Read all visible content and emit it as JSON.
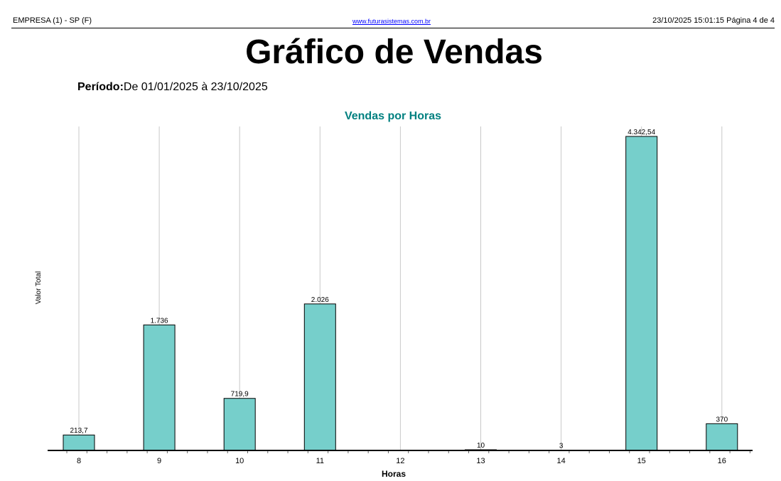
{
  "header": {
    "company": "EMPRESA (1) - SP (F)",
    "url": "www.futurasistemas.com.br",
    "datetime_page": "23/10/2025 15:01:15 Página 4 de 4"
  },
  "title": "Gráfico de Vendas",
  "period": {
    "label": "Período:",
    "value": "De 01/01/2025 à 23/10/2025"
  },
  "chart_data": {
    "type": "bar",
    "title": "Vendas por Horas",
    "xlabel": "Horas",
    "ylabel": "Valor Total",
    "categories": [
      "8",
      "9",
      "10",
      "11",
      "12",
      "13",
      "14",
      "15",
      "16"
    ],
    "values": [
      213.7,
      1736,
      719.9,
      2026,
      0,
      10,
      3,
      4342.54,
      370
    ],
    "data_labels": [
      "213,7",
      "1.736",
      "719,9",
      "2.026",
      "",
      "10",
      "3",
      "4.342,54",
      "370"
    ],
    "ylim": [
      0,
      4480
    ],
    "grid": "vertical",
    "colors": {
      "bar": "#76cfcb",
      "title": "#008080"
    }
  }
}
